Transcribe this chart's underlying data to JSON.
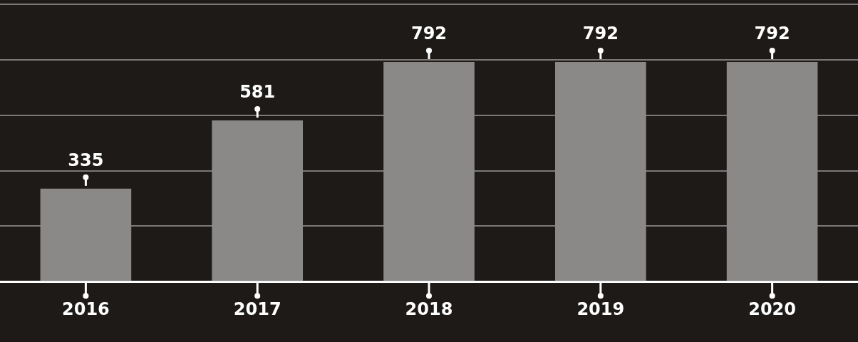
{
  "chart_data": {
    "type": "bar",
    "categories": [
      "2016",
      "2017",
      "2018",
      "2019",
      "2020"
    ],
    "values": [
      335,
      581,
      792,
      792,
      792
    ],
    "color": "#8a8988",
    "grid": "y",
    "tick_labels": "x",
    "data_labels": true
  }
}
